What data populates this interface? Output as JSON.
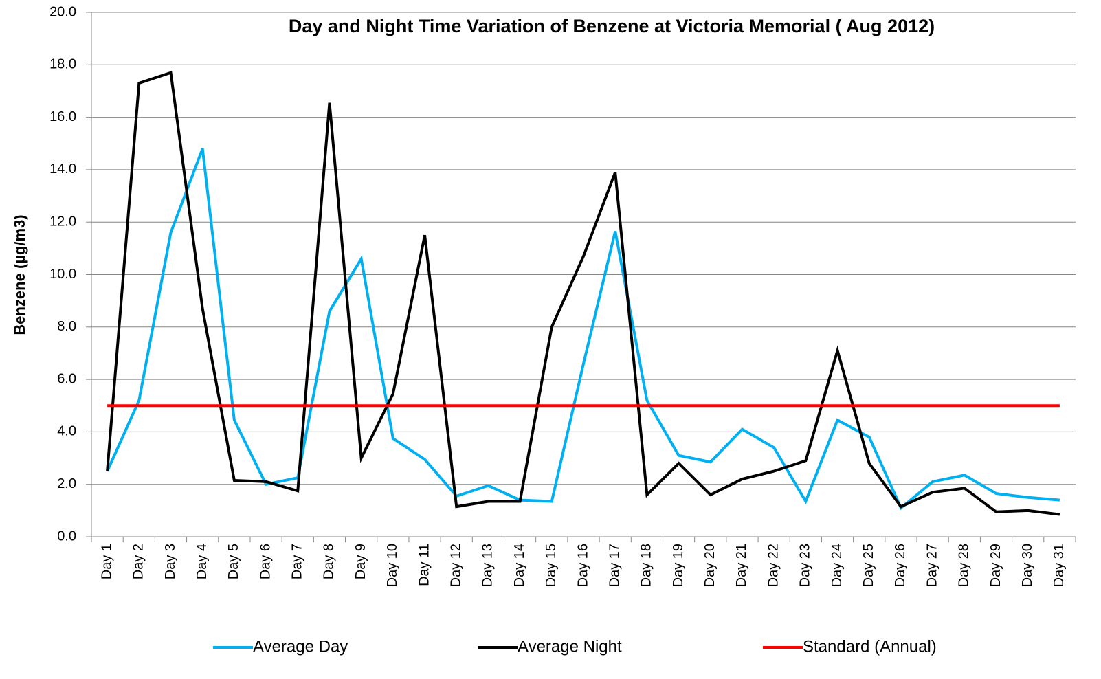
{
  "chart_data": {
    "type": "line",
    "title": "Day and Night Time Variation of Benzene at Victoria Memorial ( Aug 2012)",
    "y_label": "Benzene (µg/m3)",
    "categories": [
      "Day 1",
      "Day 2",
      "Day 3",
      "Day 4",
      "Day 5",
      "Day 6",
      "Day 7",
      "Day 8",
      "Day 9",
      "Day 10",
      "Day 11",
      "Day 12",
      "Day 13",
      "Day 14",
      "Day 15",
      "Day 16",
      "Day 17",
      "Day 18",
      "Day 19",
      "Day 20",
      "Day 21",
      "Day 22",
      "Day 23",
      "Day 24",
      "Day 25",
      "Day 26",
      "Day 27",
      "Day 28",
      "Day 29",
      "Day 30",
      "Day 31"
    ],
    "series": [
      {
        "name": "Average Day",
        "color": "#00b0f0",
        "values": [
          2.5,
          5.2,
          11.6,
          14.8,
          4.45,
          2.0,
          2.25,
          8.6,
          10.6,
          3.75,
          2.95,
          1.55,
          1.95,
          1.4,
          1.35,
          6.6,
          11.65,
          5.2,
          3.1,
          2.85,
          4.1,
          3.4,
          1.35,
          4.45,
          3.8,
          1.1,
          2.1,
          2.35,
          1.65,
          1.5,
          1.4
        ]
      },
      {
        "name": "Average Night",
        "color": "#000000",
        "values": [
          2.5,
          17.3,
          17.7,
          8.7,
          2.15,
          2.1,
          1.75,
          16.55,
          3.0,
          5.45,
          11.5,
          1.15,
          1.35,
          1.35,
          8.0,
          10.7,
          13.9,
          1.6,
          2.8,
          1.6,
          2.2,
          2.5,
          2.9,
          7.1,
          2.8,
          1.15,
          1.7,
          1.85,
          0.95,
          1.0,
          0.85
        ]
      },
      {
        "name": "Standard (Annual)",
        "color": "#ff0000",
        "values": [
          5,
          5,
          5,
          5,
          5,
          5,
          5,
          5,
          5,
          5,
          5,
          5,
          5,
          5,
          5,
          5,
          5,
          5,
          5,
          5,
          5,
          5,
          5,
          5,
          5,
          5,
          5,
          5,
          5,
          5,
          5
        ]
      }
    ],
    "ylim": [
      0,
      20
    ],
    "yticks": [
      {
        "value": 0,
        "label": "0.0"
      },
      {
        "value": 2,
        "label": "2.0"
      },
      {
        "value": 4,
        "label": "4.0"
      },
      {
        "value": 6,
        "label": "6.0"
      },
      {
        "value": 8,
        "label": "8.0"
      },
      {
        "value": 10,
        "label": "10.0"
      },
      {
        "value": 12,
        "label": "12.0"
      },
      {
        "value": 14,
        "label": "14.0"
      },
      {
        "value": 16,
        "label": "16.0"
      },
      {
        "value": 18,
        "label": "18.0"
      },
      {
        "value": 20,
        "label": "20.0"
      }
    ],
    "grid": true,
    "legend": "bottom"
  }
}
